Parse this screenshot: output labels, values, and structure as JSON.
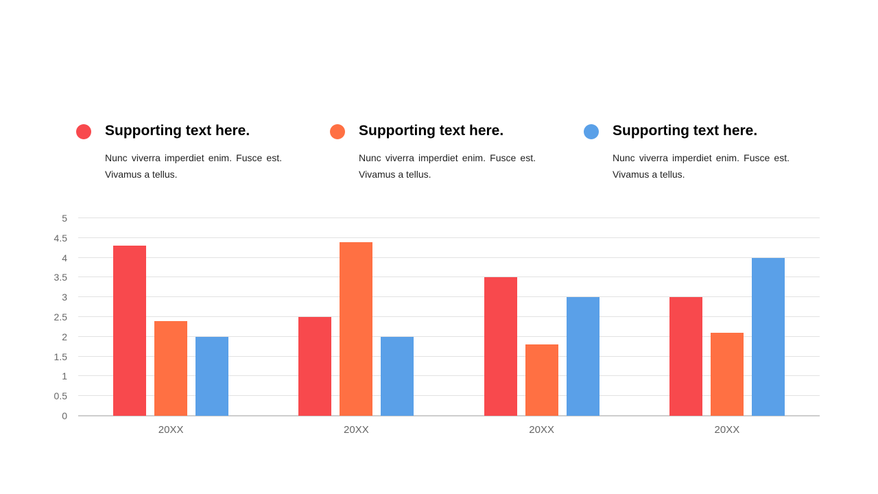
{
  "page": {
    "background": "#ffffff"
  },
  "legend": {
    "items": [
      {
        "title": "Supporting text here.",
        "body": "Nunc viverra imperdiet enim. Fusce est. Vivamus a tellus.",
        "color": "#f8494d"
      },
      {
        "title": "Supporting text here.",
        "body": "Nunc viverra imperdiet enim. Fusce est. Vivamus a tellus.",
        "color": "#ff7043"
      },
      {
        "title": "Supporting text here.",
        "body": "Nunc viverra imperdiet enim. Fusce est. Vivamus a tellus.",
        "color": "#5aa0e8"
      }
    ]
  },
  "chart_data": {
    "type": "bar",
    "title": "",
    "xlabel": "",
    "ylabel": "",
    "categories": [
      "20XX",
      "20XX",
      "20XX",
      "20XX"
    ],
    "series": [
      {
        "name": "series-red",
        "color": "#f8494d",
        "values": [
          4.3,
          2.5,
          3.5,
          3.0
        ]
      },
      {
        "name": "series-orange",
        "color": "#ff7043",
        "values": [
          2.4,
          4.4,
          1.8,
          2.1
        ]
      },
      {
        "name": "series-blue",
        "color": "#5aa0e8",
        "values": [
          2.0,
          2.0,
          3.0,
          4.0
        ]
      }
    ],
    "ylim": [
      0,
      5
    ],
    "yticks": [
      0,
      0.5,
      1,
      1.5,
      2,
      2.5,
      3,
      3.5,
      4,
      4.5,
      5
    ],
    "grid": true,
    "gridline_color": "#e2e2e2",
    "baseline_color": "#cdcdcd",
    "tick_label_color": "#666666",
    "legend_position": "top"
  }
}
